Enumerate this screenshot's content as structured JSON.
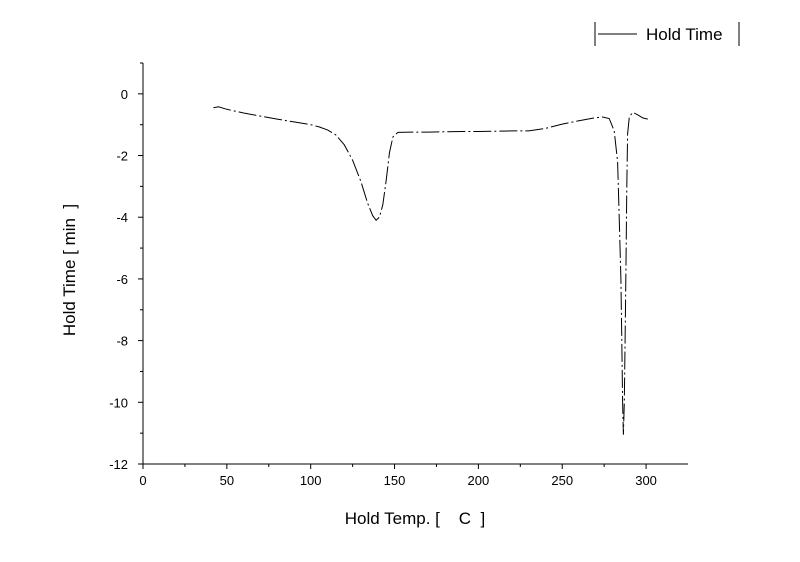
{
  "chart_data": {
    "type": "line",
    "title": "",
    "xlabel": "Hold Temp. [    C  ]",
    "ylabel": "Hold Time [ min  ]",
    "xlim": [
      0,
      325
    ],
    "ylim": [
      -12,
      1
    ],
    "x_ticks": [
      0,
      50,
      100,
      150,
      200,
      250,
      300
    ],
    "y_ticks": [
      0,
      -2,
      -4,
      -6,
      -8,
      -10,
      -12
    ],
    "grid": false,
    "legend_position": "top-right",
    "series": [
      {
        "name": "Hold Time",
        "color": "#000000",
        "line_style": "dash-dot",
        "points": [
          [
            42,
            -0.45
          ],
          [
            45,
            -0.42
          ],
          [
            50,
            -0.5
          ],
          [
            60,
            -0.62
          ],
          [
            70,
            -0.72
          ],
          [
            80,
            -0.82
          ],
          [
            90,
            -0.91
          ],
          [
            100,
            -1.0
          ],
          [
            105,
            -1.07
          ],
          [
            110,
            -1.17
          ],
          [
            115,
            -1.33
          ],
          [
            120,
            -1.65
          ],
          [
            125,
            -2.15
          ],
          [
            130,
            -2.85
          ],
          [
            134,
            -3.55
          ],
          [
            137,
            -3.95
          ],
          [
            139,
            -4.1
          ],
          [
            141,
            -4.0
          ],
          [
            143,
            -3.6
          ],
          [
            145,
            -2.8
          ],
          [
            147,
            -1.9
          ],
          [
            149,
            -1.4
          ],
          [
            152,
            -1.25
          ],
          [
            160,
            -1.24
          ],
          [
            170,
            -1.24
          ],
          [
            180,
            -1.23
          ],
          [
            190,
            -1.22
          ],
          [
            200,
            -1.22
          ],
          [
            210,
            -1.21
          ],
          [
            220,
            -1.2
          ],
          [
            230,
            -1.2
          ],
          [
            240,
            -1.12
          ],
          [
            250,
            -0.98
          ],
          [
            260,
            -0.87
          ],
          [
            268,
            -0.79
          ],
          [
            274,
            -0.75
          ],
          [
            278,
            -0.8
          ],
          [
            281,
            -1.2
          ],
          [
            283,
            -2.2
          ],
          [
            284,
            -4.0
          ],
          [
            285,
            -6.0
          ],
          [
            285.5,
            -8.0
          ],
          [
            286,
            -10.0
          ],
          [
            286.5,
            -11.05
          ],
          [
            287,
            -10.0
          ],
          [
            287.5,
            -8.0
          ],
          [
            288,
            -5.5
          ],
          [
            288.5,
            -3.0
          ],
          [
            289,
            -1.3
          ],
          [
            290,
            -0.75
          ],
          [
            292,
            -0.6
          ],
          [
            295,
            -0.68
          ],
          [
            298,
            -0.78
          ],
          [
            301,
            -0.82
          ]
        ]
      }
    ]
  }
}
